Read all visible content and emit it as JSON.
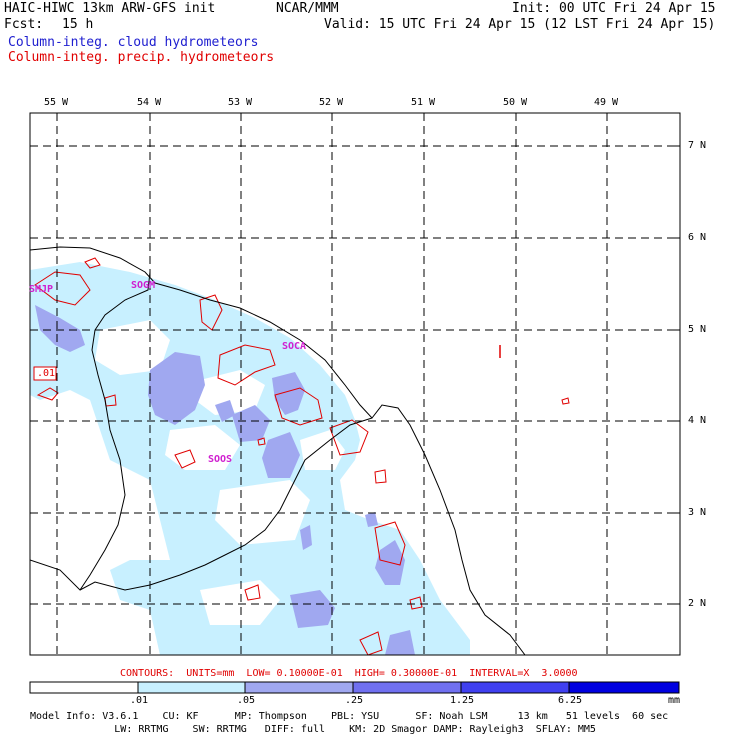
{
  "header": {
    "model_title": "HAIC-HIWC 13km ARW-GFS init",
    "org": "NCAR/MMM",
    "init": "Init: 00 UTC Fri 24 Apr 15",
    "fcst_label": "Fcst:",
    "fcst_value": "15 h",
    "valid": "Valid: 15 UTC Fri 24 Apr 15 (12 LST Fri 24 Apr 15)",
    "field1": "Column-integ. cloud hydrometeors",
    "field2": "Column-integ. precip. hydrometeors"
  },
  "map": {
    "lon_labels": [
      "55 W",
      "54 W",
      "53 W",
      "52 W",
      "51 W",
      "50 W",
      "49 W"
    ],
    "lat_labels": [
      "7 N",
      "6 N",
      "5 N",
      "4 N",
      "3 N",
      "2 N"
    ],
    "stations": [
      "SMJP",
      "SOGM",
      "SOCA",
      "SOOS"
    ],
    "contour_label": ".01",
    "colors": {
      "coast": "#000000",
      "grid": "#000000",
      "contour": "#e00000",
      "station": "#d020d0"
    }
  },
  "contour_info": "CONTOURS:  UNITS=mm  LOW= 0.10000E-01  HIGH= 0.30000E-01  INTERVAL=X  3.0000",
  "colorbar": {
    "ticks": [
      ".01",
      ".05",
      ".25",
      "1.25",
      "6.25"
    ],
    "units": "mm",
    "colors": [
      "#ffffff",
      "#c8f0ff",
      "#a0a8f0",
      "#7070f0",
      "#4040f0",
      "#0000e0"
    ]
  },
  "footer": {
    "line1": "Model Info: V3.6.1    CU: KF      MP: Thompson    PBL: YSU      SF: Noah LSM     13 km   51 levels  60 sec",
    "line2": "              LW: RRTMG    SW: RRTMG   DIFF: full    KM: 2D Smagor DAMP: Rayleigh3  SFLAY: MM5"
  }
}
